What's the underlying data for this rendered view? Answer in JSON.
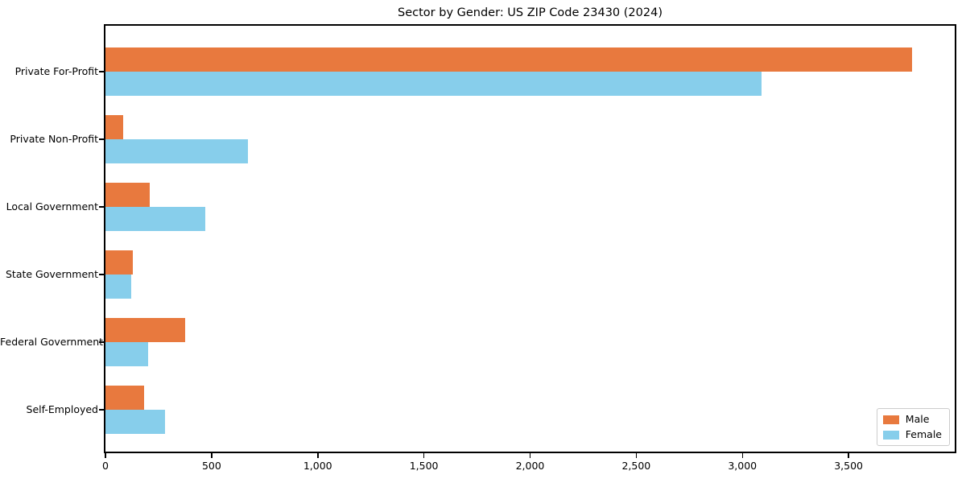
{
  "title": "Sector by Gender: US ZIP Code 23430 (2024)",
  "chart_data": {
    "type": "bar",
    "orientation": "horizontal",
    "title": "Sector by Gender: US ZIP Code 23430 (2024)",
    "xlabel": "",
    "ylabel": "",
    "categories": [
      "Private For-Profit",
      "Private Non-Profit",
      "Local Government",
      "State Government",
      "Federal Government",
      "Self-Employed"
    ],
    "series": [
      {
        "name": "Male",
        "color": "#E8793E",
        "values": [
          3800,
          85,
          210,
          130,
          375,
          180
        ]
      },
      {
        "name": "Female",
        "color": "#87CEEB",
        "values": [
          3090,
          670,
          470,
          120,
          200,
          280
        ]
      }
    ],
    "xlim": [
      0,
      4000
    ],
    "xticks": [
      0,
      500,
      1000,
      1500,
      2000,
      2500,
      3000,
      3500
    ],
    "xtick_labels": [
      "0",
      "500",
      "1,000",
      "1,500",
      "2,000",
      "2,500",
      "3,000",
      "3,500"
    ],
    "legend_position": "lower right",
    "grid": false
  }
}
